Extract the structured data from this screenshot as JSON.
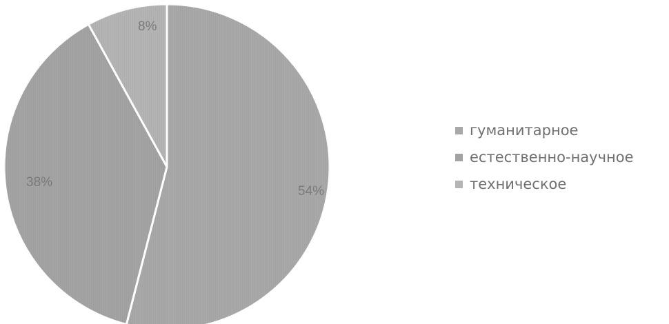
{
  "chart_data": {
    "type": "pie",
    "categories": [
      "гуманитарное",
      "естественно-научное",
      "техническое"
    ],
    "values": [
      54,
      38,
      8
    ],
    "data_labels": [
      "54%",
      "38%",
      "8%"
    ],
    "colors": [
      "#a8a8a8",
      "#a3a3a3",
      "#b4b4b4"
    ],
    "slice_border_color": "#ffffff",
    "start_angle_deg": 0,
    "direction": "clockwise",
    "legend": {
      "placement": "right",
      "items": [
        "гуманитарное",
        "естественно-научное",
        "техническое"
      ]
    },
    "title": ""
  }
}
